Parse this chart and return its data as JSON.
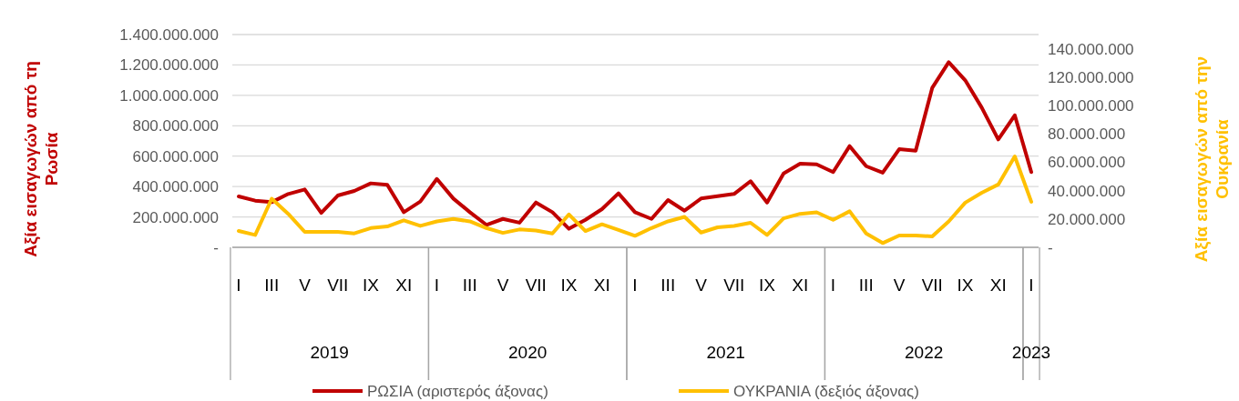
{
  "chart_data": {
    "type": "line",
    "categories": [
      "I",
      null,
      "III",
      null,
      "V",
      null,
      "VII",
      null,
      "IX",
      null,
      "XI",
      null,
      "I",
      null,
      "III",
      null,
      "V",
      null,
      "VII",
      null,
      "IX",
      null,
      "XI",
      null,
      "I",
      null,
      "III",
      null,
      "V",
      null,
      "VII",
      null,
      "IX",
      null,
      "XI",
      null,
      "I",
      null,
      "III",
      null,
      "V",
      null,
      "VII",
      null,
      "IX",
      null,
      "XI",
      null,
      "I"
    ],
    "series": [
      {
        "name": "ΡΩΣΙΑ (αριστερός άξονας)",
        "color": "#c00000",
        "values": [
          335000000,
          307000000,
          297000000,
          351000000,
          381000000,
          227000000,
          341000000,
          371000000,
          421000000,
          411000000,
          231000000,
          301000000,
          450000000,
          321000000,
          231000000,
          148000000,
          187000000,
          162000000,
          295000000,
          231000000,
          122000000,
          181000000,
          251000000,
          355000000,
          231000000,
          187000000,
          311000000,
          241000000,
          321000000,
          337000000,
          351000000,
          435000000,
          295000000,
          486000000,
          550000000,
          546000000,
          495000000,
          666000000,
          534000000,
          491000000,
          646000000,
          636000000,
          1049000000,
          1218000000,
          1099000000,
          919000000,
          710000000,
          869000000,
          495000000
        ]
      },
      {
        "name": "ΟΥΚΡΑΝΙΑ (δεξιός άξονας)",
        "color": "#ffc000",
        "axis": "y2",
        "values": [
          11500000,
          8700000,
          34300000,
          23600000,
          10900000,
          10900000,
          10900000,
          9800000,
          13600000,
          14700000,
          19000000,
          15100000,
          18300000,
          20000000,
          18300000,
          13600000,
          10200000,
          12600000,
          11900000,
          9800000,
          23200000,
          11500000,
          16200000,
          12300000,
          8100000,
          13600000,
          18300000,
          21500000,
          10400000,
          14100000,
          15100000,
          17300000,
          8700000,
          20400000,
          23600000,
          24700000,
          19400000,
          25400000,
          9800000,
          3000000,
          8300000,
          8300000,
          7700000,
          18300000,
          31500000,
          38500000,
          44300000,
          64100000,
          32100000
        ]
      }
    ],
    "ylabel": "Αξία εισαγωγών από τη Ρωσία",
    "y2label": "Αξία εισαγωγών από την Ουκρανία",
    "ylim": [
      0,
      1400000000
    ],
    "yticks": [
      {
        "value": 0,
        "label": "-"
      },
      {
        "value": 200000000,
        "label": "200.000.000"
      },
      {
        "value": 400000000,
        "label": "400.000.000"
      },
      {
        "value": 600000000,
        "label": "600.000.000"
      },
      {
        "value": 800000000,
        "label": "800.000.000"
      },
      {
        "value": 1000000000,
        "label": "1.000.000.000"
      },
      {
        "value": 1200000000,
        "label": "1.200.000.000"
      },
      {
        "value": 1400000000,
        "label": "1.400.000.000"
      }
    ],
    "y2lim": [
      0,
      150000000
    ],
    "y2ticks": [
      {
        "value": 0,
        "label": "-"
      },
      {
        "value": 20000000,
        "label": "20.000.000"
      },
      {
        "value": 40000000,
        "label": "40.000.000"
      },
      {
        "value": 60000000,
        "label": "60.000.000"
      },
      {
        "value": 80000000,
        "label": "80.000.000"
      },
      {
        "value": 100000000,
        "label": "100.000.000"
      },
      {
        "value": 120000000,
        "label": "120.000.000"
      },
      {
        "value": 140000000,
        "label": "140.000.000"
      }
    ],
    "annotations": [
      "2019",
      "2020",
      "2021",
      "2022",
      "2023"
    ],
    "grid": "y",
    "legend": "bottom",
    "line_style": "solid",
    "marker": "none"
  }
}
